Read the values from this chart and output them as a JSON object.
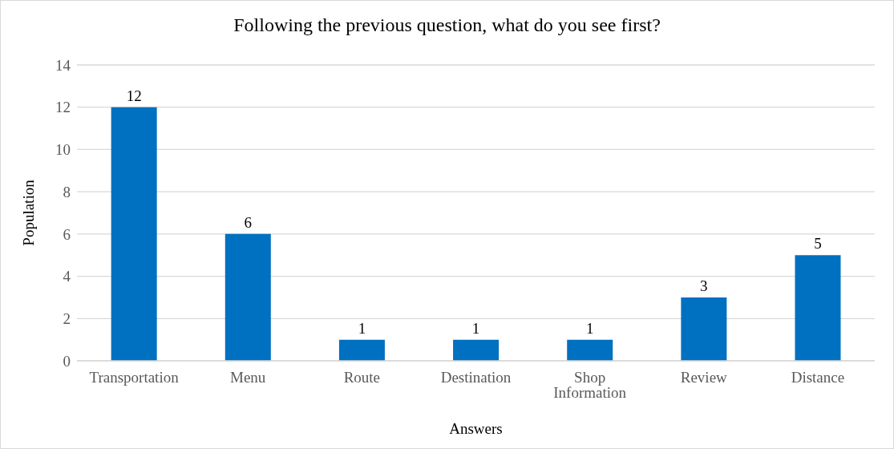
{
  "chart_data": {
    "type": "bar",
    "title": "Following the previous question, what do you see first?",
    "xlabel": "Answers",
    "ylabel": "Population",
    "categories": [
      "Transportation",
      "Menu",
      "Route",
      "Destination",
      "Shop Information",
      "Review",
      "Distance"
    ],
    "values": [
      12,
      6,
      1,
      1,
      1,
      3,
      5
    ],
    "color": "#0070c0",
    "ylim": [
      0,
      14
    ],
    "yticks": [
      0,
      2,
      4,
      6,
      8,
      10,
      12,
      14
    ],
    "grid": "y",
    "data_labels": true
  }
}
